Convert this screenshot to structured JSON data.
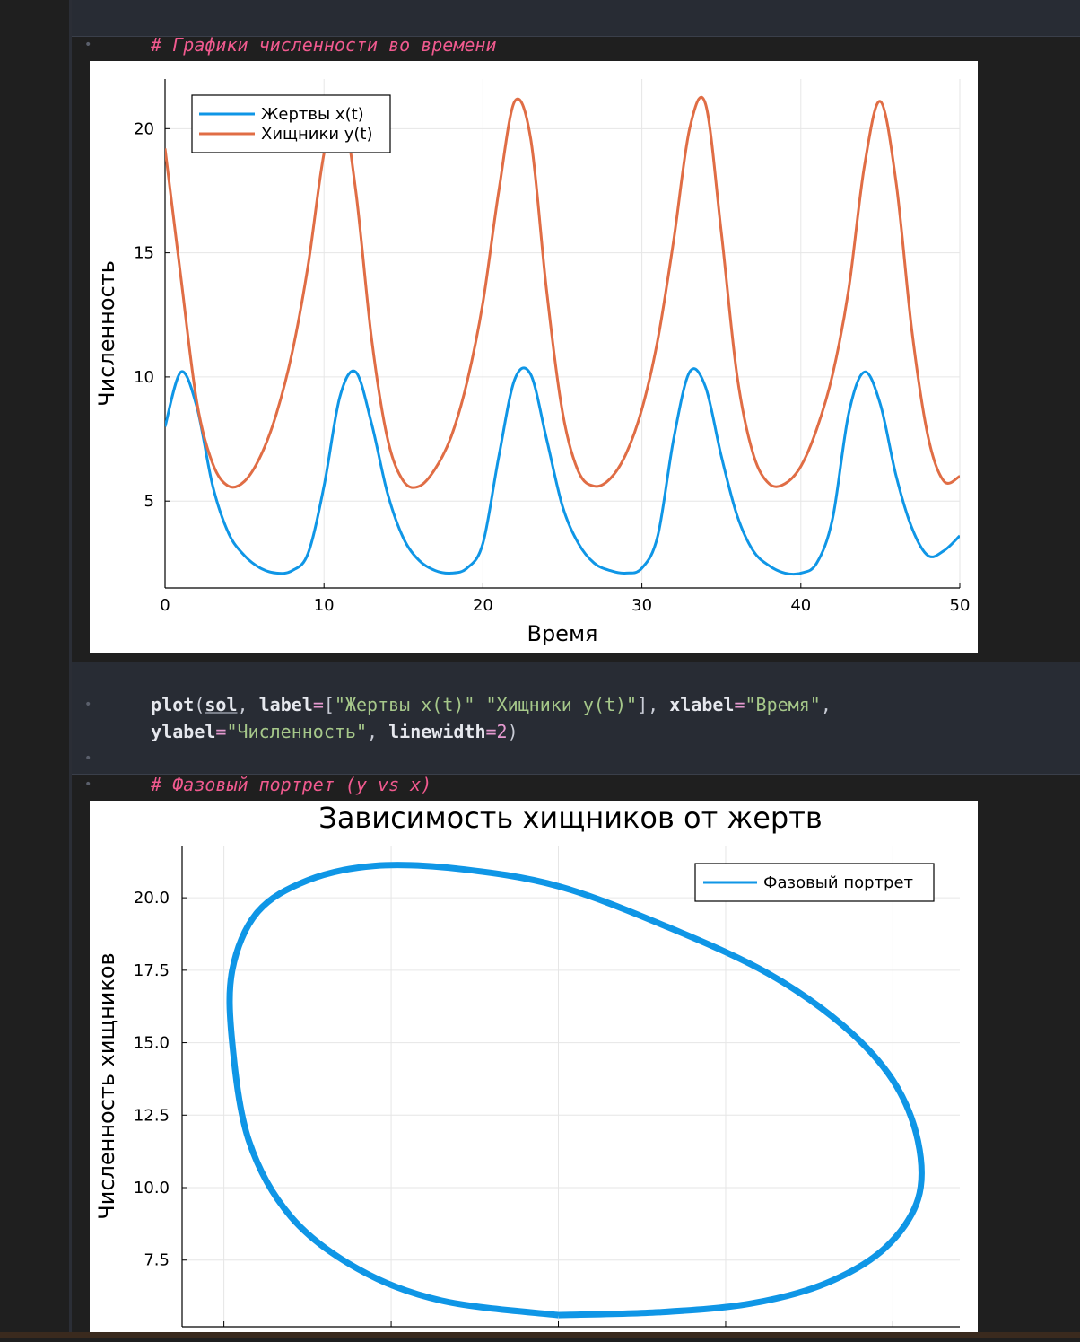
{
  "cells": {
    "top_comment": "# Графики численности во времени",
    "code": {
      "fn": "plot",
      "arg_var": "sol",
      "kw_label": "label",
      "str_label1": "\"Жертвы x(t)\"",
      "str_label2": "\"Хищники y(t)\"",
      "kw_xlabel": "xlabel",
      "str_xlabel": "\"Время\"",
      "kw_ylabel": "ylabel",
      "str_ylabel": "\"Численность\"",
      "kw_linewidth": "linewidth",
      "num_linewidth": "2"
    },
    "bottom_comment": "# Фазовый портрет (y vs x)"
  },
  "colors": {
    "prey": "#0f96e6",
    "predator": "#e06d45",
    "cell_bg": "#282c34",
    "page_bg": "#1f1f1f"
  },
  "chart_data": [
    {
      "type": "line",
      "title": "",
      "xlabel": "Время",
      "ylabel": "Численность",
      "xlim": [
        0,
        50
      ],
      "ylim": [
        1.5,
        22
      ],
      "x_ticks": [
        "0",
        "10",
        "20",
        "30",
        "40",
        "50"
      ],
      "y_ticks": [
        "5",
        "10",
        "15",
        "20"
      ],
      "grid": true,
      "legend_position": "top-left",
      "x": [
        0,
        1,
        2,
        3,
        4,
        5,
        6,
        7,
        8,
        9,
        10,
        11,
        12,
        13,
        14,
        15,
        16,
        17,
        18,
        19,
        20,
        21,
        22,
        23,
        24,
        25,
        26,
        27,
        28,
        29,
        30,
        31,
        32,
        33,
        34,
        35,
        36,
        37,
        38,
        39,
        40,
        41,
        42,
        43,
        44,
        45,
        46,
        47,
        48,
        49,
        50
      ],
      "series": [
        {
          "name": "Жертвы x(t)",
          "color": "#0f96e6",
          "values": [
            8.0,
            10.2,
            8.8,
            5.6,
            3.7,
            2.8,
            2.3,
            2.1,
            2.2,
            2.9,
            5.6,
            9.2,
            10.2,
            8.1,
            5.3,
            3.5,
            2.6,
            2.2,
            2.1,
            2.3,
            3.3,
            6.8,
            9.9,
            10.1,
            7.5,
            4.8,
            3.3,
            2.5,
            2.2,
            2.1,
            2.3,
            3.6,
            7.5,
            10.2,
            9.6,
            6.8,
            4.4,
            3.0,
            2.4,
            2.1,
            2.1,
            2.5,
            4.3,
            8.5,
            10.2,
            8.9,
            6.0,
            3.9,
            2.8,
            3.0,
            3.6
          ]
        },
        {
          "name": "Хищники y(t)",
          "color": "#e06d45",
          "values": [
            19.2,
            14.0,
            9.0,
            6.5,
            5.6,
            5.8,
            6.8,
            8.5,
            11.0,
            14.5,
            19.0,
            21.2,
            17.5,
            11.5,
            7.5,
            5.8,
            5.6,
            6.3,
            7.6,
            9.8,
            13.0,
            17.5,
            21.1,
            19.6,
            13.5,
            8.6,
            6.2,
            5.6,
            5.9,
            6.9,
            8.7,
            11.5,
            15.5,
            20.0,
            21.0,
            15.8,
            10.0,
            6.9,
            5.7,
            5.7,
            6.4,
            7.9,
            10.1,
            13.5,
            18.5,
            21.1,
            17.8,
            11.8,
            7.6,
            5.8,
            6.0
          ]
        }
      ]
    },
    {
      "type": "line",
      "title": "Зависимость хищников от жертв",
      "xlabel": "",
      "ylabel": "Численность хищников",
      "xlim": [
        1.5,
        10.8
      ],
      "ylim": [
        5.2,
        21.8
      ],
      "x_ticks": [
        "",
        "",
        "",
        "",
        ""
      ],
      "x_tick_values": [
        2,
        4,
        6,
        8,
        10
      ],
      "y_ticks": [
        "7.5",
        "10.0",
        "12.5",
        "15.0",
        "17.5",
        "20.0"
      ],
      "grid": true,
      "legend_position": "top-right",
      "series": [
        {
          "name": "Фазовый портрет",
          "color": "#0f96e6",
          "x": [
            6.0,
            7.2,
            8.3,
            9.2,
            9.9,
            10.3,
            10.3,
            10.0,
            9.4,
            8.5,
            7.3,
            6.0,
            4.8,
            3.8,
            3.0,
            2.4,
            2.1,
            2.1,
            2.3,
            2.8,
            3.6,
            4.6,
            6.0
          ],
          "y": [
            5.6,
            5.7,
            6.0,
            6.7,
            7.9,
            9.6,
            11.6,
            13.7,
            15.6,
            17.4,
            19.0,
            20.4,
            21.0,
            21.1,
            20.6,
            19.5,
            17.5,
            15.0,
            11.6,
            9.0,
            7.2,
            6.1,
            5.6
          ]
        }
      ]
    }
  ]
}
